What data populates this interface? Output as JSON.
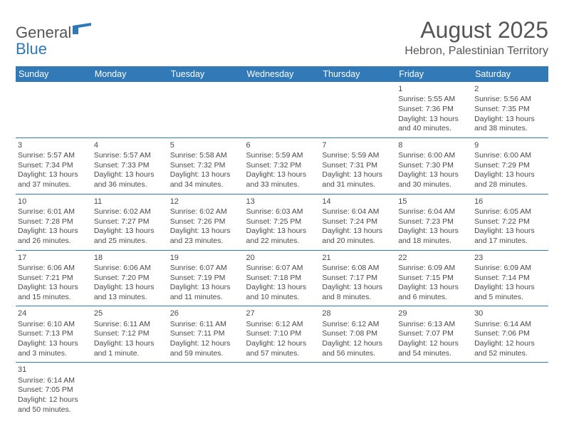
{
  "logo": {
    "text1": "General",
    "text2": "Blue"
  },
  "title": "August 2025",
  "location": "Hebron, Palestinian Territory",
  "colors": {
    "header_bg": "#3279b7",
    "header_text": "#ffffff",
    "text": "#4a4a4a",
    "accent": "#2f78b8"
  },
  "weekdays": [
    "Sunday",
    "Monday",
    "Tuesday",
    "Wednesday",
    "Thursday",
    "Friday",
    "Saturday"
  ],
  "weeks": [
    [
      null,
      null,
      null,
      null,
      null,
      {
        "n": "1",
        "sr": "Sunrise: 5:55 AM",
        "ss": "Sunset: 7:36 PM",
        "d1": "Daylight: 13 hours",
        "d2": "and 40 minutes."
      },
      {
        "n": "2",
        "sr": "Sunrise: 5:56 AM",
        "ss": "Sunset: 7:35 PM",
        "d1": "Daylight: 13 hours",
        "d2": "and 38 minutes."
      }
    ],
    [
      {
        "n": "3",
        "sr": "Sunrise: 5:57 AM",
        "ss": "Sunset: 7:34 PM",
        "d1": "Daylight: 13 hours",
        "d2": "and 37 minutes."
      },
      {
        "n": "4",
        "sr": "Sunrise: 5:57 AM",
        "ss": "Sunset: 7:33 PM",
        "d1": "Daylight: 13 hours",
        "d2": "and 36 minutes."
      },
      {
        "n": "5",
        "sr": "Sunrise: 5:58 AM",
        "ss": "Sunset: 7:32 PM",
        "d1": "Daylight: 13 hours",
        "d2": "and 34 minutes."
      },
      {
        "n": "6",
        "sr": "Sunrise: 5:59 AM",
        "ss": "Sunset: 7:32 PM",
        "d1": "Daylight: 13 hours",
        "d2": "and 33 minutes."
      },
      {
        "n": "7",
        "sr": "Sunrise: 5:59 AM",
        "ss": "Sunset: 7:31 PM",
        "d1": "Daylight: 13 hours",
        "d2": "and 31 minutes."
      },
      {
        "n": "8",
        "sr": "Sunrise: 6:00 AM",
        "ss": "Sunset: 7:30 PM",
        "d1": "Daylight: 13 hours",
        "d2": "and 30 minutes."
      },
      {
        "n": "9",
        "sr": "Sunrise: 6:00 AM",
        "ss": "Sunset: 7:29 PM",
        "d1": "Daylight: 13 hours",
        "d2": "and 28 minutes."
      }
    ],
    [
      {
        "n": "10",
        "sr": "Sunrise: 6:01 AM",
        "ss": "Sunset: 7:28 PM",
        "d1": "Daylight: 13 hours",
        "d2": "and 26 minutes."
      },
      {
        "n": "11",
        "sr": "Sunrise: 6:02 AM",
        "ss": "Sunset: 7:27 PM",
        "d1": "Daylight: 13 hours",
        "d2": "and 25 minutes."
      },
      {
        "n": "12",
        "sr": "Sunrise: 6:02 AM",
        "ss": "Sunset: 7:26 PM",
        "d1": "Daylight: 13 hours",
        "d2": "and 23 minutes."
      },
      {
        "n": "13",
        "sr": "Sunrise: 6:03 AM",
        "ss": "Sunset: 7:25 PM",
        "d1": "Daylight: 13 hours",
        "d2": "and 22 minutes."
      },
      {
        "n": "14",
        "sr": "Sunrise: 6:04 AM",
        "ss": "Sunset: 7:24 PM",
        "d1": "Daylight: 13 hours",
        "d2": "and 20 minutes."
      },
      {
        "n": "15",
        "sr": "Sunrise: 6:04 AM",
        "ss": "Sunset: 7:23 PM",
        "d1": "Daylight: 13 hours",
        "d2": "and 18 minutes."
      },
      {
        "n": "16",
        "sr": "Sunrise: 6:05 AM",
        "ss": "Sunset: 7:22 PM",
        "d1": "Daylight: 13 hours",
        "d2": "and 17 minutes."
      }
    ],
    [
      {
        "n": "17",
        "sr": "Sunrise: 6:06 AM",
        "ss": "Sunset: 7:21 PM",
        "d1": "Daylight: 13 hours",
        "d2": "and 15 minutes."
      },
      {
        "n": "18",
        "sr": "Sunrise: 6:06 AM",
        "ss": "Sunset: 7:20 PM",
        "d1": "Daylight: 13 hours",
        "d2": "and 13 minutes."
      },
      {
        "n": "19",
        "sr": "Sunrise: 6:07 AM",
        "ss": "Sunset: 7:19 PM",
        "d1": "Daylight: 13 hours",
        "d2": "and 11 minutes."
      },
      {
        "n": "20",
        "sr": "Sunrise: 6:07 AM",
        "ss": "Sunset: 7:18 PM",
        "d1": "Daylight: 13 hours",
        "d2": "and 10 minutes."
      },
      {
        "n": "21",
        "sr": "Sunrise: 6:08 AM",
        "ss": "Sunset: 7:17 PM",
        "d1": "Daylight: 13 hours",
        "d2": "and 8 minutes."
      },
      {
        "n": "22",
        "sr": "Sunrise: 6:09 AM",
        "ss": "Sunset: 7:15 PM",
        "d1": "Daylight: 13 hours",
        "d2": "and 6 minutes."
      },
      {
        "n": "23",
        "sr": "Sunrise: 6:09 AM",
        "ss": "Sunset: 7:14 PM",
        "d1": "Daylight: 13 hours",
        "d2": "and 5 minutes."
      }
    ],
    [
      {
        "n": "24",
        "sr": "Sunrise: 6:10 AM",
        "ss": "Sunset: 7:13 PM",
        "d1": "Daylight: 13 hours",
        "d2": "and 3 minutes."
      },
      {
        "n": "25",
        "sr": "Sunrise: 6:11 AM",
        "ss": "Sunset: 7:12 PM",
        "d1": "Daylight: 13 hours",
        "d2": "and 1 minute."
      },
      {
        "n": "26",
        "sr": "Sunrise: 6:11 AM",
        "ss": "Sunset: 7:11 PM",
        "d1": "Daylight: 12 hours",
        "d2": "and 59 minutes."
      },
      {
        "n": "27",
        "sr": "Sunrise: 6:12 AM",
        "ss": "Sunset: 7:10 PM",
        "d1": "Daylight: 12 hours",
        "d2": "and 57 minutes."
      },
      {
        "n": "28",
        "sr": "Sunrise: 6:12 AM",
        "ss": "Sunset: 7:08 PM",
        "d1": "Daylight: 12 hours",
        "d2": "and 56 minutes."
      },
      {
        "n": "29",
        "sr": "Sunrise: 6:13 AM",
        "ss": "Sunset: 7:07 PM",
        "d1": "Daylight: 12 hours",
        "d2": "and 54 minutes."
      },
      {
        "n": "30",
        "sr": "Sunrise: 6:14 AM",
        "ss": "Sunset: 7:06 PM",
        "d1": "Daylight: 12 hours",
        "d2": "and 52 minutes."
      }
    ],
    [
      {
        "n": "31",
        "sr": "Sunrise: 6:14 AM",
        "ss": "Sunset: 7:05 PM",
        "d1": "Daylight: 12 hours",
        "d2": "and 50 minutes."
      },
      null,
      null,
      null,
      null,
      null,
      null
    ]
  ]
}
